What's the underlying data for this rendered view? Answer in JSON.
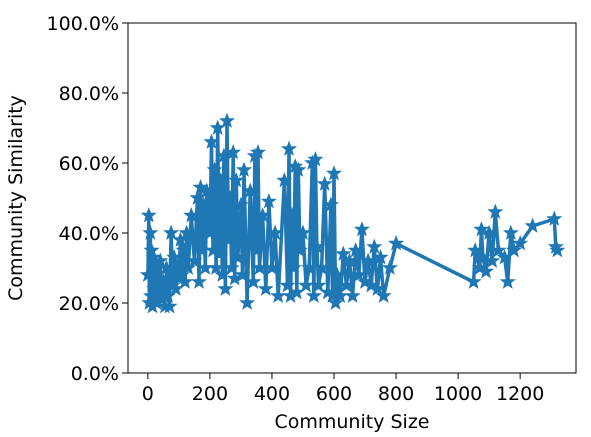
{
  "chart_data": {
    "type": "line",
    "xlabel": "Community Size",
    "ylabel": "Community Similarity",
    "color": "#1f77b4",
    "marker": "star",
    "x": [
      0,
      3,
      5,
      8,
      10,
      12,
      15,
      18,
      20,
      25,
      28,
      30,
      35,
      40,
      45,
      50,
      55,
      60,
      65,
      70,
      75,
      80,
      85,
      90,
      95,
      100,
      105,
      110,
      115,
      120,
      125,
      130,
      140,
      150,
      160,
      165,
      170,
      175,
      180,
      185,
      190,
      200,
      205,
      210,
      215,
      220,
      225,
      230,
      235,
      240,
      245,
      250,
      255,
      260,
      265,
      270,
      275,
      280,
      285,
      290,
      300,
      305,
      310,
      320,
      330,
      340,
      345,
      350,
      355,
      360,
      370,
      380,
      390,
      400,
      410,
      420,
      440,
      450,
      455,
      460,
      465,
      470,
      475,
      480,
      485,
      490,
      500,
      510,
      520,
      530,
      535,
      540,
      545,
      550,
      560,
      570,
      580,
      590,
      595,
      600,
      605,
      610,
      620,
      630,
      640,
      650,
      660,
      670,
      680,
      690,
      700,
      710,
      720,
      730,
      740,
      750,
      760,
      780,
      800,
      1050,
      1055,
      1070,
      1075,
      1080,
      1090,
      1100,
      1110,
      1120,
      1130,
      1150,
      1160,
      1170,
      1180,
      1200,
      1240,
      1310,
      1315,
      1320
    ],
    "values": [
      28,
      45,
      20,
      40,
      22,
      35,
      19,
      33,
      24,
      30,
      20,
      28,
      22,
      32,
      21,
      26,
      19,
      30,
      22,
      19,
      40,
      25,
      33,
      24,
      30,
      27,
      38,
      28,
      35,
      26,
      40,
      30,
      45,
      32,
      50,
      26,
      53,
      35,
      48,
      30,
      52,
      40,
      66,
      35,
      58,
      30,
      70,
      34,
      55,
      28,
      62,
      24,
      72,
      38,
      50,
      30,
      63,
      27,
      55,
      33,
      48,
      28,
      58,
      20,
      52,
      26,
      62,
      35,
      63,
      30,
      45,
      24,
      49,
      30,
      40,
      22,
      55,
      25,
      64,
      22,
      45,
      30,
      59,
      23,
      58,
      35,
      40,
      25,
      30,
      60,
      22,
      61,
      36,
      25,
      30,
      54,
      23,
      48,
      22,
      57,
      20,
      28,
      22,
      34,
      25,
      32,
      22,
      35,
      28,
      41,
      26,
      32,
      25,
      36,
      24,
      33,
      22,
      30,
      37,
      26,
      35,
      30,
      41,
      33,
      29,
      40,
      32,
      46,
      35,
      33,
      26,
      40,
      35,
      37,
      42,
      44,
      36,
      35
    ],
    "xlim": [
      -64,
      1380
    ],
    "xticks": [
      0,
      200,
      400,
      600,
      800,
      1000,
      1200
    ],
    "ylim": [
      0,
      100
    ],
    "yticks": [
      {
        "value": 0,
        "label": "0.0%"
      },
      {
        "value": 20,
        "label": "20.0%"
      },
      {
        "value": 40,
        "label": "40.0%"
      },
      {
        "value": 60,
        "label": "60.0%"
      },
      {
        "value": 80,
        "label": "80.0%"
      },
      {
        "value": 100,
        "label": "100.0%"
      }
    ]
  }
}
